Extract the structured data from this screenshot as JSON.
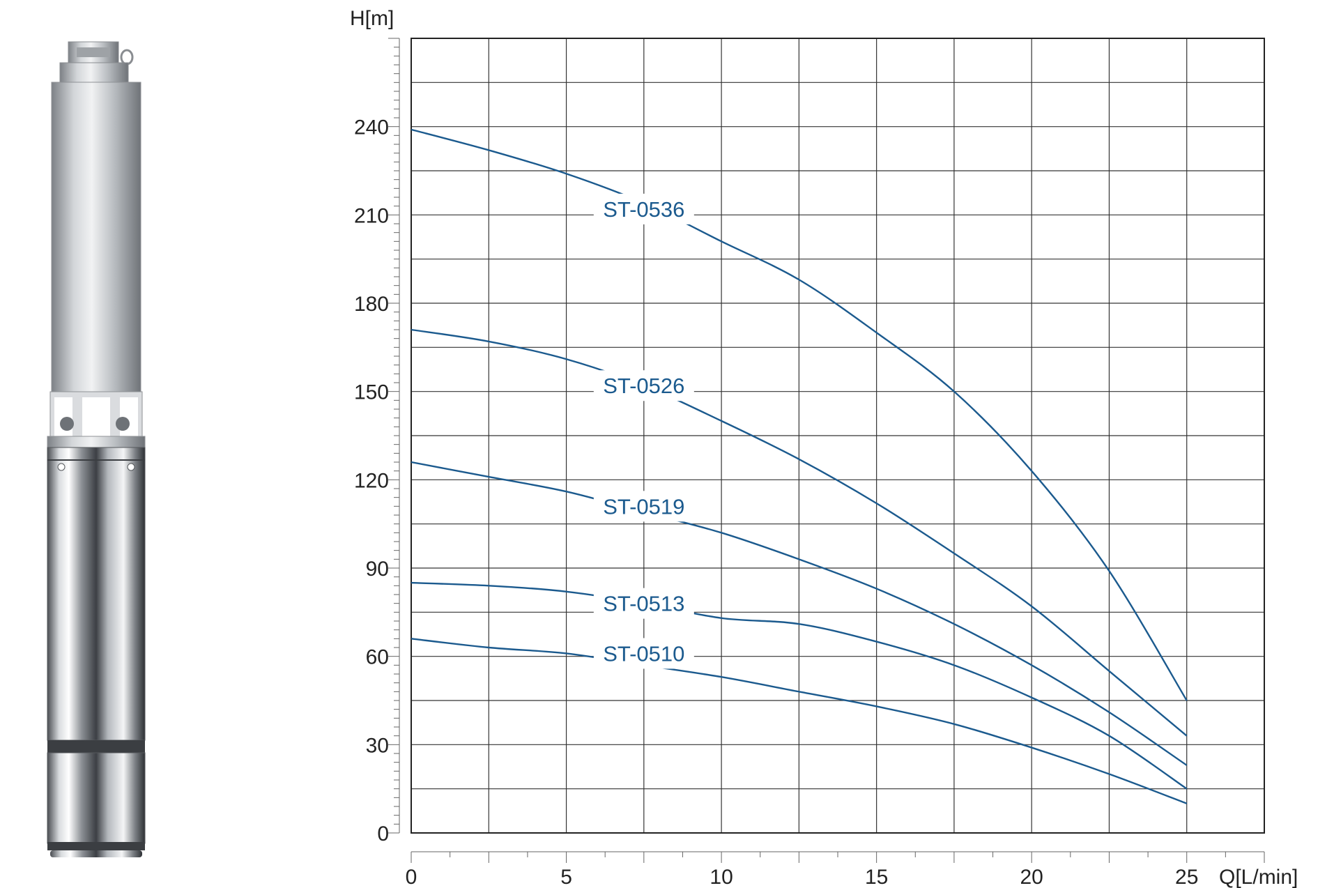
{
  "image": {
    "subject": "submersible-pump"
  },
  "chart_data": {
    "type": "line",
    "title": "",
    "xlabel": "Q[L/min]",
    "ylabel": "H[m]",
    "xlim": [
      0,
      27.5
    ],
    "ylim": [
      0,
      270
    ],
    "x_ticks": [
      0,
      5,
      10,
      15,
      20,
      25
    ],
    "y_ticks": [
      0,
      30,
      60,
      90,
      120,
      150,
      180,
      210,
      240
    ],
    "x_grid_step": 2.5,
    "y_grid_step": 15,
    "grid": true,
    "curve_color": "#1b5a8e",
    "series": [
      {
        "name": "ST-0536",
        "label_at": [
          7.5,
          212
        ],
        "x": [
          0,
          2.5,
          5,
          7.5,
          10,
          12.5,
          15,
          17.5,
          20,
          22.5,
          25
        ],
        "y": [
          239,
          232,
          224,
          214,
          201,
          188,
          170,
          150,
          123,
          89,
          45
        ]
      },
      {
        "name": "ST-0526",
        "label_at": [
          7.5,
          152
        ],
        "x": [
          0,
          2.5,
          5,
          7.5,
          10,
          12.5,
          15,
          17.5,
          20,
          22.5,
          25
        ],
        "y": [
          171,
          167,
          161,
          152,
          140,
          127,
          112,
          95,
          77,
          55,
          33
        ]
      },
      {
        "name": "ST-0519",
        "label_at": [
          7.5,
          111
        ],
        "x": [
          0,
          2.5,
          5,
          7.5,
          10,
          12.5,
          15,
          17.5,
          20,
          22.5,
          25
        ],
        "y": [
          126,
          121,
          116,
          109,
          102,
          93,
          83,
          71,
          57,
          41,
          23
        ]
      },
      {
        "name": "ST-0513",
        "label_at": [
          7.5,
          78
        ],
        "x": [
          0,
          2.5,
          5,
          7.5,
          10,
          12.5,
          15,
          17.5,
          20,
          22.5,
          25
        ],
        "y": [
          85,
          84,
          82,
          78,
          73,
          71,
          65,
          57,
          46,
          33,
          15
        ]
      },
      {
        "name": "ST-0510",
        "label_at": [
          7.5,
          61
        ],
        "x": [
          0,
          2.5,
          5,
          7.5,
          10,
          12.5,
          15,
          17.5,
          20,
          22.5,
          25
        ],
        "y": [
          66,
          63,
          61,
          57,
          53,
          48,
          43,
          37,
          29,
          20,
          10
        ]
      }
    ]
  }
}
